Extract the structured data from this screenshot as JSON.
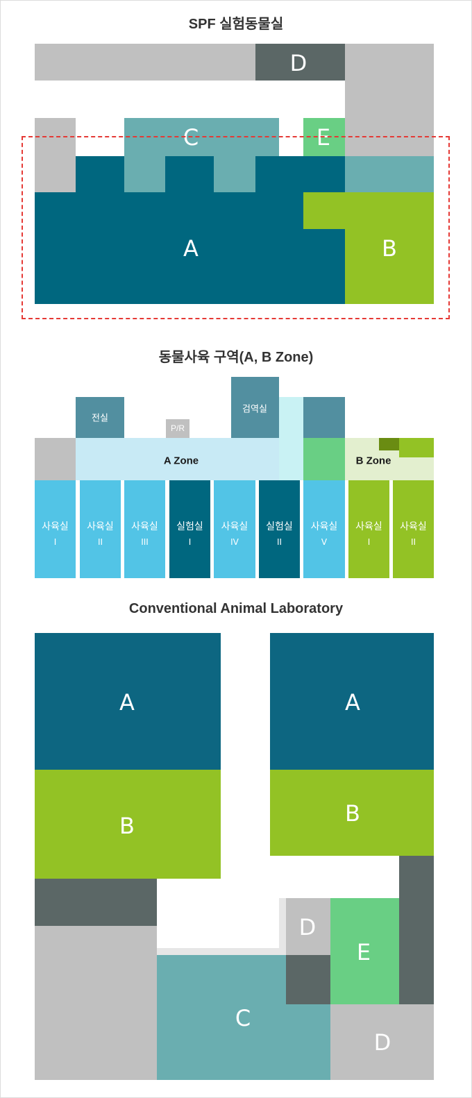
{
  "spf": {
    "title": "SPF 실험동물실",
    "labels": {
      "a": "A",
      "b": "B",
      "c": "C",
      "d": "D",
      "e": "E"
    }
  },
  "zones": {
    "title": "동물사육 구역(A, B Zone)",
    "jeonsil": "전실",
    "pr": "P/R",
    "geomyeok": "검역실",
    "a_zone": "A Zone",
    "b_zone": "B Zone",
    "rooms": [
      {
        "name": "사육실",
        "num": "I"
      },
      {
        "name": "사육실",
        "num": "II"
      },
      {
        "name": "사육실",
        "num": "III"
      },
      {
        "name": "실험실",
        "num": "I"
      },
      {
        "name": "사육실",
        "num": "IV"
      },
      {
        "name": "실험실",
        "num": "II"
      },
      {
        "name": "사육실",
        "num": "V"
      },
      {
        "name": "사육실",
        "num": "I"
      },
      {
        "name": "사육실",
        "num": "II"
      }
    ]
  },
  "conventional": {
    "title": "Conventional Animal Laboratory",
    "labels": {
      "a_left": "A",
      "b_left": "B",
      "a_right": "A",
      "b_right": "B",
      "d_mid": "D",
      "e": "E",
      "c": "C",
      "d_bottom": "D"
    }
  },
  "colors": {
    "navy": "#00677f",
    "teal": "#6aaeb0",
    "lime": "#93c225",
    "green": "#69cf84",
    "dark": "#5b6766",
    "gray": "#c0c0c0",
    "sky": "#52c4e6",
    "pale_blue": "#c8eaf5",
    "steel": "#528fa0"
  }
}
